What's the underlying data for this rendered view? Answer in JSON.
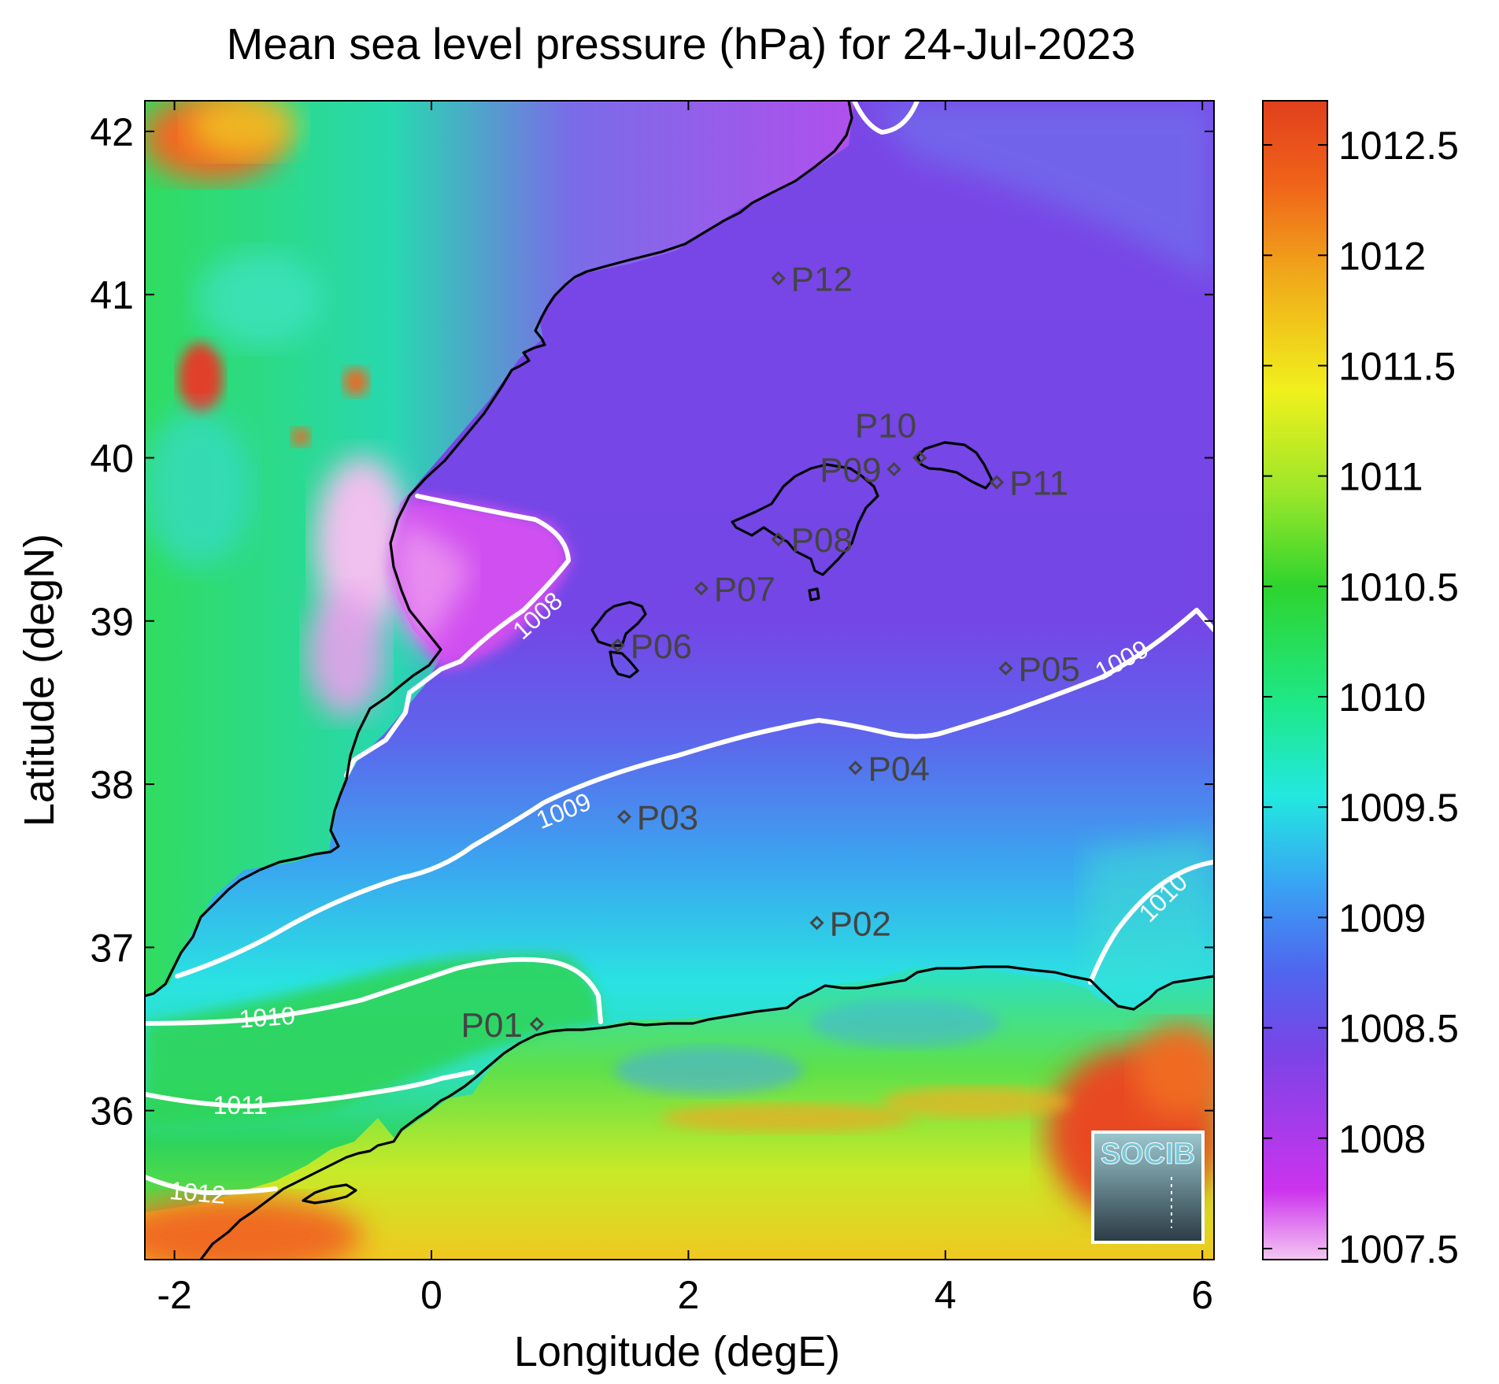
{
  "title": "Mean sea level pressure (hPa) for 24-Jul-2023",
  "xlabel": "Longitude (degE)",
  "ylabel": "Latitude (degN)",
  "x_ticks": [
    "-2",
    "0",
    "2",
    "4",
    "6"
  ],
  "y_ticks": [
    "36",
    "37",
    "38",
    "39",
    "40",
    "41",
    "42"
  ],
  "colorbar": {
    "min": 1007.45,
    "max": 1012.7,
    "tick_values": [
      1007.5,
      1008,
      1008.5,
      1009,
      1009.5,
      1010,
      1010.5,
      1011,
      1011.5,
      1012,
      1012.5
    ],
    "tick_labels": [
      "1007.5",
      "1008",
      "1008.5",
      "1009",
      "1009.5",
      "1010",
      "1010.5",
      "1011",
      "1011.5",
      "1012",
      "1012.5"
    ],
    "colors": [
      "#f4c7f2",
      "#cc33ee",
      "#7a44e6",
      "#4f66ee",
      "#3aa0f4",
      "#22e8e0",
      "#1ee888",
      "#2ed42e",
      "#99e62a",
      "#f0f01c",
      "#f0a81a",
      "#f0621a",
      "#e0401c"
    ]
  },
  "contour_labels": [
    "1008",
    "1009",
    "1009",
    "1010",
    "1010",
    "1011",
    "1012"
  ],
  "stations": [
    {
      "name": "P01",
      "lon": 0.82,
      "lat": 36.53
    },
    {
      "name": "P02",
      "lon": 3.0,
      "lat": 37.15
    },
    {
      "name": "P03",
      "lon": 1.5,
      "lat": 37.8
    },
    {
      "name": "P04",
      "lon": 3.3,
      "lat": 38.1
    },
    {
      "name": "P05",
      "lon": 4.47,
      "lat": 38.71
    },
    {
      "name": "P06",
      "lon": 1.45,
      "lat": 38.85
    },
    {
      "name": "P07",
      "lon": 2.1,
      "lat": 39.2
    },
    {
      "name": "P08",
      "lon": 2.7,
      "lat": 39.5
    },
    {
      "name": "P09",
      "lon": 3.6,
      "lat": 39.93
    },
    {
      "name": "P10",
      "lon": 3.8,
      "lat": 40.0
    },
    {
      "name": "P11",
      "lon": 4.4,
      "lat": 39.85
    },
    {
      "name": "P12",
      "lon": 2.7,
      "lat": 41.1
    }
  ],
  "logo": {
    "text": "SOCIB",
    "color": "#7cc8d8"
  }
}
